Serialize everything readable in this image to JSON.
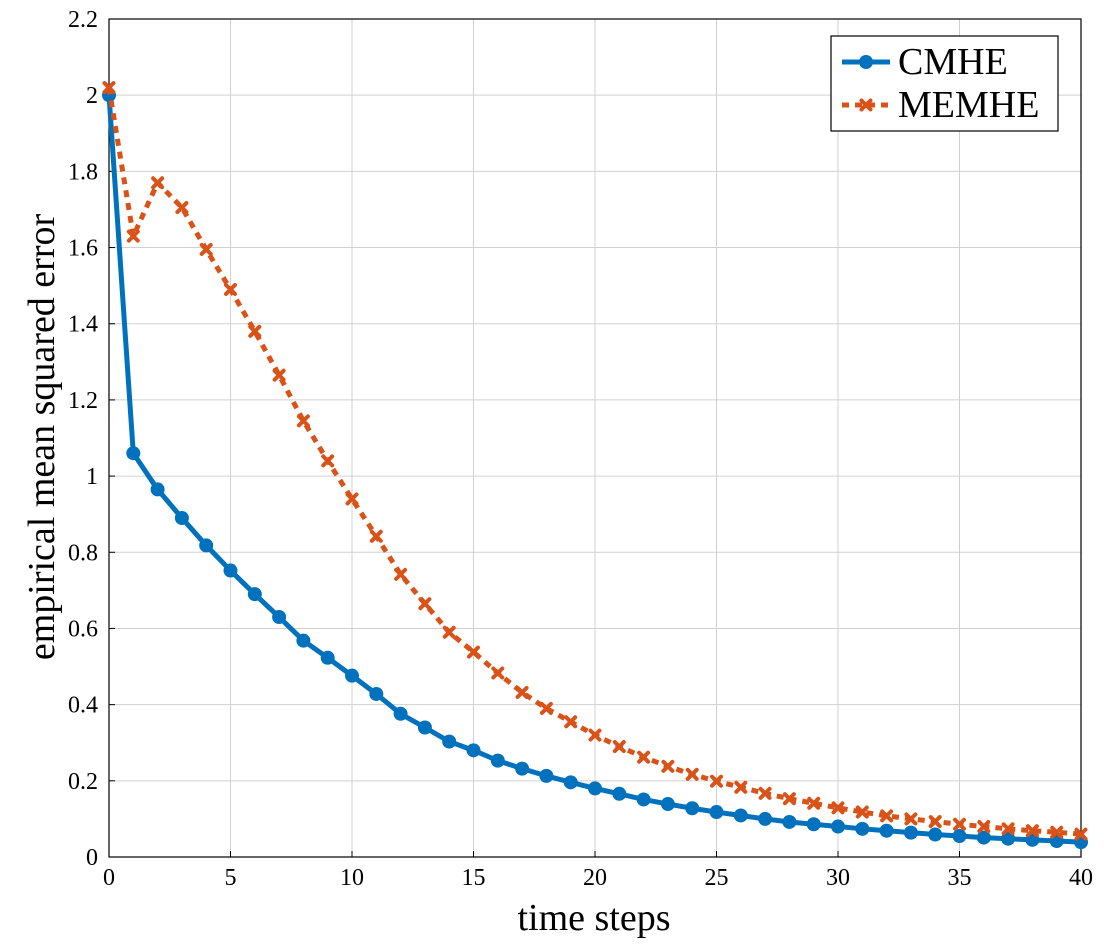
{
  "chart_data": {
    "type": "line",
    "title": "",
    "xlabel": "time steps",
    "ylabel": "empirical mean squared error",
    "xlim": [
      0,
      40
    ],
    "ylim": [
      0,
      2.2
    ],
    "xticks": [
      "0",
      "5",
      "10",
      "15",
      "20",
      "25",
      "30",
      "35",
      "40"
    ],
    "yticks": [
      "0",
      "0.2",
      "0.4",
      "0.6",
      "0.8",
      "1",
      "1.2",
      "1.4",
      "1.6",
      "1.8",
      "2",
      "2.2"
    ],
    "grid": true,
    "legend_position": "top-right",
    "x": [
      0,
      1,
      2,
      3,
      4,
      5,
      6,
      7,
      8,
      9,
      10,
      11,
      12,
      13,
      14,
      15,
      16,
      17,
      18,
      19,
      20,
      21,
      22,
      23,
      24,
      25,
      26,
      27,
      28,
      29,
      30,
      31,
      32,
      33,
      34,
      35,
      36,
      37,
      38,
      39,
      40
    ],
    "series": [
      {
        "name": "CMHE",
        "color": "#0072bd",
        "marker": "circle",
        "line": "solid",
        "values": [
          2.0,
          1.06,
          0.965,
          0.89,
          0.818,
          0.752,
          0.69,
          0.63,
          0.568,
          0.523,
          0.476,
          0.428,
          0.376,
          0.34,
          0.303,
          0.28,
          0.253,
          0.232,
          0.213,
          0.196,
          0.18,
          0.166,
          0.151,
          0.139,
          0.128,
          0.118,
          0.109,
          0.1,
          0.092,
          0.086,
          0.08,
          0.074,
          0.069,
          0.064,
          0.059,
          0.055,
          0.051,
          0.048,
          0.045,
          0.042,
          0.039
        ]
      },
      {
        "name": "MEMHE",
        "color": "#d95319",
        "marker": "x",
        "line": "dotted",
        "values": [
          2.02,
          1.63,
          1.77,
          1.705,
          1.595,
          1.49,
          1.38,
          1.265,
          1.145,
          1.04,
          0.94,
          0.842,
          0.742,
          0.665,
          0.59,
          0.538,
          0.483,
          0.432,
          0.39,
          0.355,
          0.32,
          0.29,
          0.262,
          0.238,
          0.217,
          0.199,
          0.183,
          0.167,
          0.153,
          0.141,
          0.129,
          0.118,
          0.108,
          0.1,
          0.093,
          0.086,
          0.08,
          0.074,
          0.069,
          0.065,
          0.06
        ]
      }
    ]
  }
}
